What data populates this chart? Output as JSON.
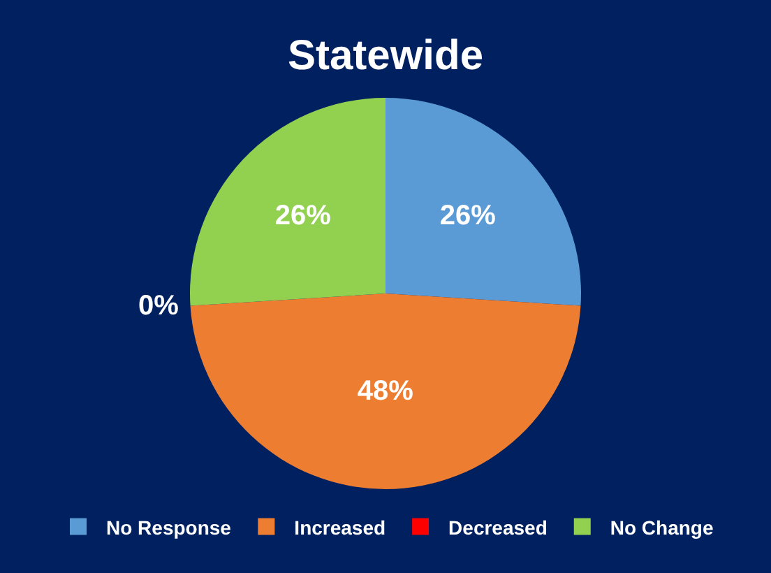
{
  "chart_data": {
    "type": "pie",
    "title": "Statewide",
    "categories": [
      "No Response",
      "Increased",
      "Decreased",
      "No Change"
    ],
    "values": [
      26,
      48,
      0,
      26
    ],
    "colors": [
      "#5b9bd5",
      "#ed7d31",
      "#ff0000",
      "#92d050"
    ],
    "value_labels": [
      "26%",
      "48%",
      "0%",
      "26%"
    ],
    "legend": "bottom"
  }
}
